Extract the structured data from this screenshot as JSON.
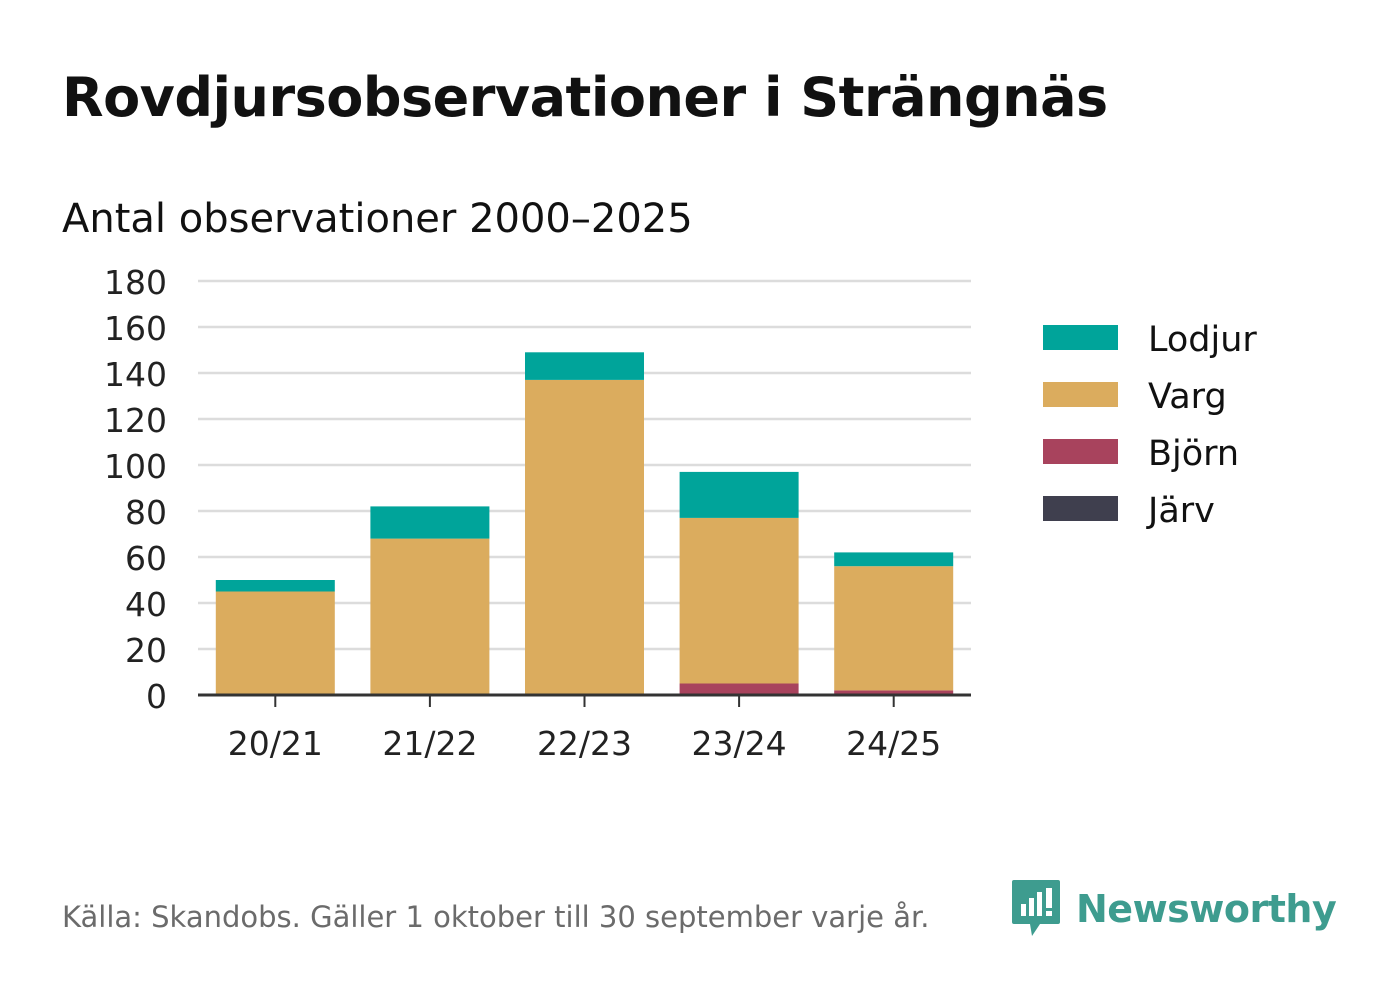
{
  "title": "Rovdjursobservationer i Strängnäs",
  "source": "Källa: Skandobs. Gäller 1 oktober till 30 september varje år.",
  "brand": "Newsworthy",
  "chart_data": {
    "type": "bar",
    "stacked": true,
    "title": "Antal observationer 2000–2025",
    "xlabel": "",
    "ylabel": "",
    "ylim": [
      0,
      180
    ],
    "yticks": [
      0,
      20,
      40,
      60,
      80,
      100,
      120,
      140,
      160,
      180
    ],
    "categories": [
      "20/21",
      "21/22",
      "22/23",
      "23/24",
      "24/25"
    ],
    "series": [
      {
        "name": "Järv",
        "color": "#3f3f4e",
        "values": [
          0,
          0,
          0,
          0,
          0
        ]
      },
      {
        "name": "Björn",
        "color": "#a8435d",
        "values": [
          0,
          0,
          0,
          5,
          2
        ]
      },
      {
        "name": "Varg",
        "color": "#dbac5e",
        "values": [
          45,
          68,
          137,
          72,
          54
        ]
      },
      {
        "name": "Lodjur",
        "color": "#00a49a",
        "values": [
          5,
          14,
          12,
          20,
          6
        ]
      }
    ],
    "legend": [
      "Lodjur",
      "Varg",
      "Björn",
      "Järv"
    ],
    "legend_position": "right",
    "grid": true
  }
}
